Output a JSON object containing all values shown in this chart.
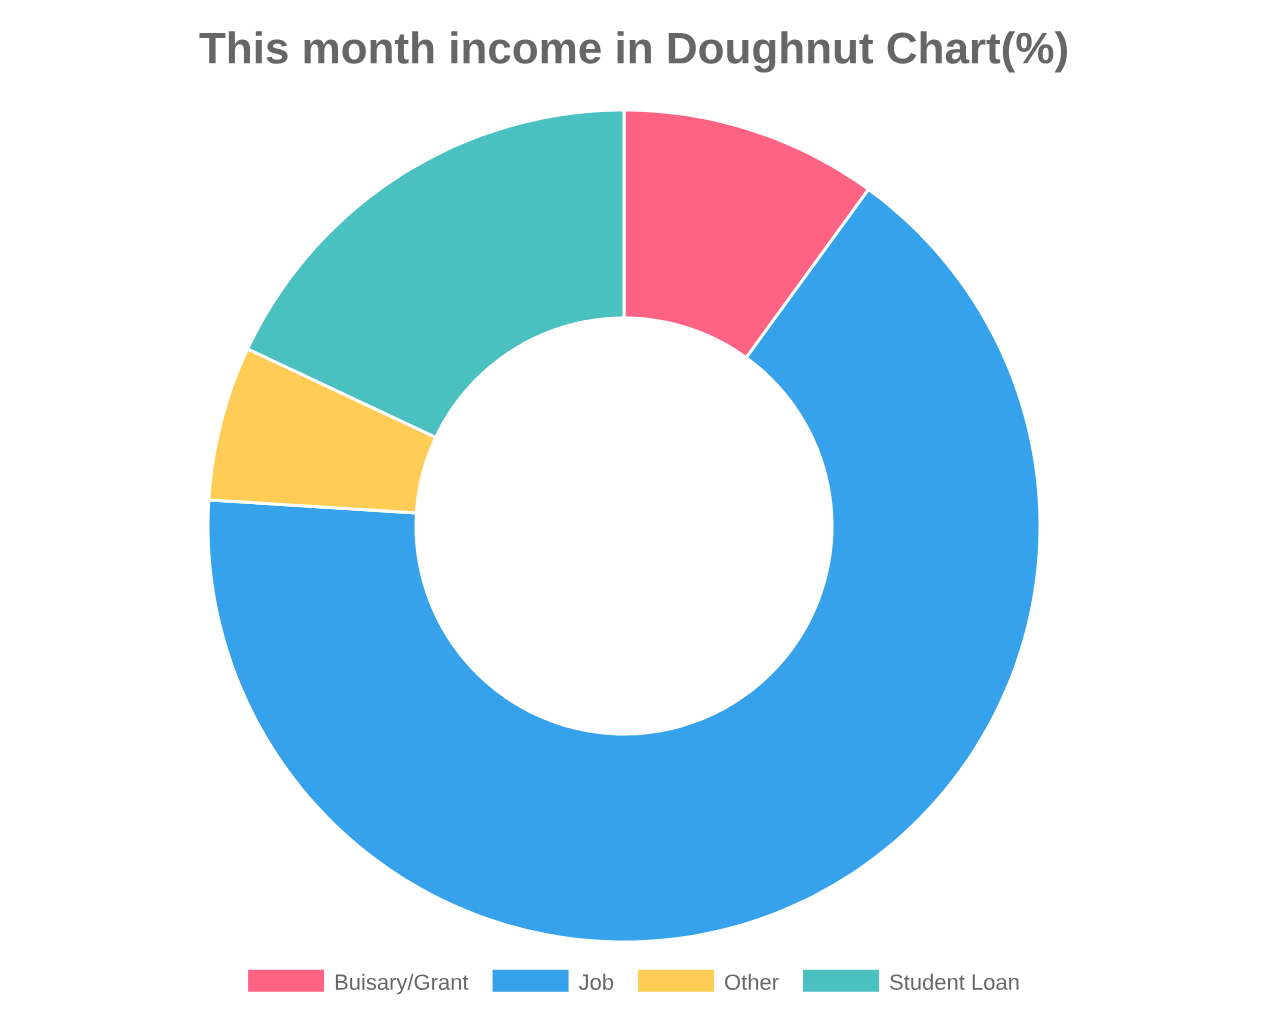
{
  "chart_data": {
    "type": "donut",
    "title": "This month income in Doughnut Chart(%)",
    "categories": [
      "Buisary/Grant",
      "Job",
      "Other",
      "Student Loan"
    ],
    "values": [
      10,
      66,
      6,
      18
    ],
    "colors": [
      "#ff6384",
      "#36a2eb",
      "#ffcd56",
      "#4bc0c0"
    ],
    "legend": "bottom"
  }
}
